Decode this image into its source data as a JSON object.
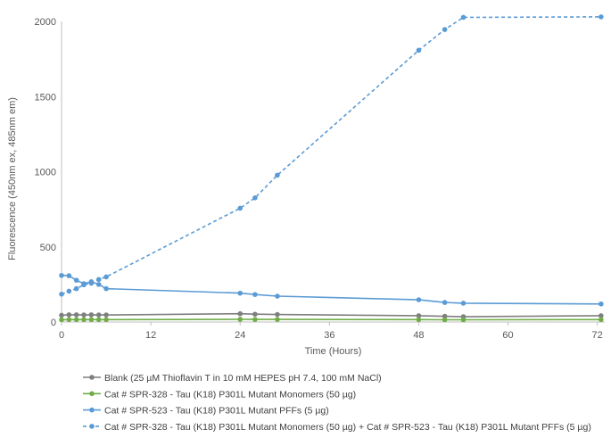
{
  "chart_data": {
    "type": "line",
    "title": "",
    "xlabel": "Time (Hours)",
    "ylabel": "Fluorescence (450nm ex, 485nm em)",
    "xlim": [
      0,
      73
    ],
    "ylim": [
      0,
      2000
    ],
    "xticks": [
      0,
      12,
      24,
      36,
      48,
      60,
      72
    ],
    "yticks": [
      0,
      500,
      1000,
      1500,
      2000
    ],
    "grid": false,
    "legend_position": "bottom",
    "series": [
      {
        "name": "Blank (25 µM Thioflavin T in 10 mM HEPES pH 7.4, 100 mM NaCl)",
        "color": "#7f7f7f",
        "dash": "solid",
        "points": [
          [
            0,
            45
          ],
          [
            1,
            48
          ],
          [
            2,
            48
          ],
          [
            3,
            47
          ],
          [
            4,
            48
          ],
          [
            5,
            47
          ],
          [
            6,
            47
          ],
          [
            24,
            55
          ],
          [
            26,
            52
          ],
          [
            29,
            50
          ],
          [
            48,
            42
          ],
          [
            51.5,
            38
          ],
          [
            54,
            35
          ],
          [
            72.5,
            42
          ]
        ]
      },
      {
        "name": "Cat # SPR-328 - Tau (K18) P301L Mutant Monomers (50 µg)",
        "color": "#70ad47",
        "dash": "solid",
        "points": [
          [
            0,
            15
          ],
          [
            1,
            16
          ],
          [
            2,
            16
          ],
          [
            3,
            16
          ],
          [
            4,
            16
          ],
          [
            5,
            16
          ],
          [
            6,
            16
          ],
          [
            24,
            18
          ],
          [
            26,
            17
          ],
          [
            29,
            17
          ],
          [
            48,
            16
          ],
          [
            51.5,
            15
          ],
          [
            54,
            15
          ],
          [
            72.5,
            16
          ]
        ]
      },
      {
        "name": "Cat # SPR-523 - Tau (K18) P301L Mutant PFFs (5 µg)",
        "color": "#5b9bd5",
        "dash": "solid",
        "points": [
          [
            0,
            310
          ],
          [
            1,
            308
          ],
          [
            2,
            278
          ],
          [
            3,
            255
          ],
          [
            4,
            268
          ],
          [
            5,
            250
          ],
          [
            6,
            222
          ],
          [
            24,
            192
          ],
          [
            26,
            183
          ],
          [
            29,
            172
          ],
          [
            48,
            148
          ],
          [
            51.5,
            130
          ],
          [
            54,
            125
          ],
          [
            72.5,
            120
          ]
        ]
      },
      {
        "name": "Cat # SPR-328 - Tau (K18) P301L Mutant Monomers (50 µg) + Cat # SPR-523 - Tau (K18) P301L Mutant PFFs (5 µg)",
        "color": "#5b9bd5",
        "dash": "dashed",
        "points": [
          [
            0,
            185
          ],
          [
            1,
            205
          ],
          [
            2,
            222
          ],
          [
            3,
            248
          ],
          [
            4,
            258
          ],
          [
            5,
            283
          ],
          [
            6,
            300
          ],
          [
            24,
            757
          ],
          [
            26,
            826
          ],
          [
            29,
            977
          ],
          [
            48,
            1808
          ],
          [
            51.5,
            1946
          ],
          [
            54,
            2027
          ],
          [
            72.5,
            2030
          ]
        ]
      }
    ]
  }
}
